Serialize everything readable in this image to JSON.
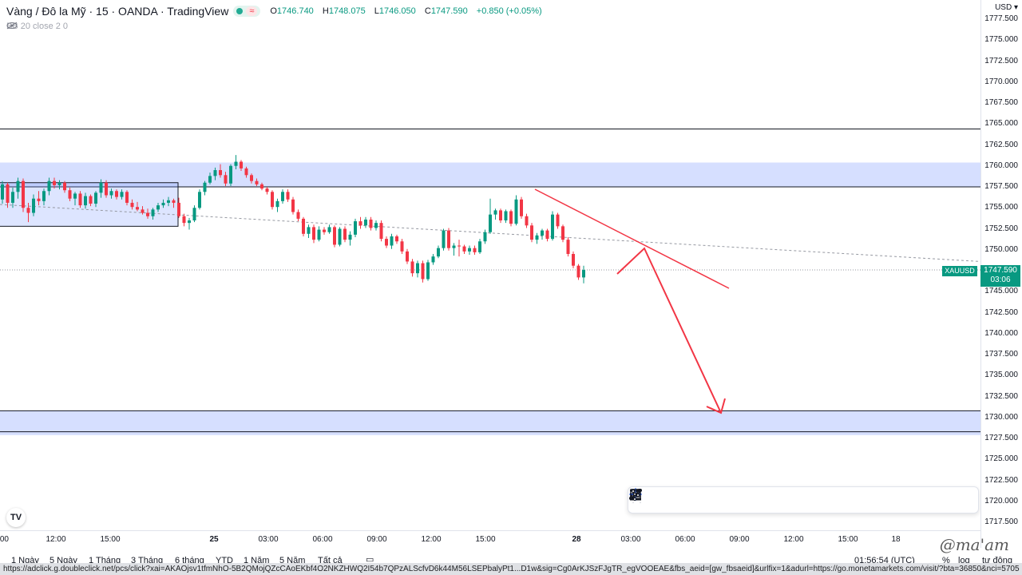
{
  "header": {
    "title": "Vàng / Đô la Mỹ · 15 · OANDA · TradingView",
    "wave_icon": "≈",
    "ohlc": {
      "o": "1746.740",
      "h": "1748.075",
      "l": "1746.050",
      "c": "1747.590",
      "chg": "+0.850 (+0.05%)"
    },
    "indicator": "BB 20 close 2 0"
  },
  "price_axis": {
    "currency": "USD",
    "ticks": [
      "1777.500",
      "1775.000",
      "1772.500",
      "1770.000",
      "1767.500",
      "1765.000",
      "1762.500",
      "1760.000",
      "1757.500",
      "1755.000",
      "1752.500",
      "1750.000",
      "1745.000",
      "1742.500",
      "1740.000",
      "1737.500",
      "1735.000",
      "1732.500",
      "1730.000",
      "1727.500",
      "1725.000",
      "1722.500",
      "1720.000",
      "1717.500"
    ],
    "symbol_tag": "XAUUSD",
    "last_price": "1747.590",
    "countdown": "03:06"
  },
  "time_axis": {
    "ticks": [
      ":00",
      "12:00",
      "15:00",
      "25",
      "03:00",
      "06:00",
      "09:00",
      "12:00",
      "15:00",
      "28",
      "03:00",
      "06:00",
      "09:00",
      "12:00",
      "15:00",
      "18"
    ]
  },
  "bottom_bar": {
    "ranges": [
      "1 Ngày",
      "5 Ngày",
      "1 Tháng",
      "3 Tháng",
      "6 tháng",
      "YTD",
      "1 Năm",
      "5 Năm",
      "Tất cả"
    ],
    "clock": "01:56:54 (UTC)",
    "percent": "%",
    "log": "log",
    "auto": "tự động"
  },
  "status_url": "https://adclick.g.doubleclick.net/pcs/click?xai=AKAOjsv1tfmNhO-5B2QMojQZcCAoEKbf4O2NKZHWQ2I54b7QPzALScfvD6k44M56LSEPbalyPt1...D1w&sig=Cg0ArKJSzFJgTR_egVOOEAE&fbs_aeid=[gw_fbsaeid]&urlfix=1&adurl=https://go.monetamarkets.com/visit/?bta=36850&nci=5705",
  "watermark": "@ma'am",
  "tv_logo": "TV",
  "drawing_tools": [
    "trend-line-icon",
    "ray-icon",
    "rectangle-icon",
    "fib-icon",
    "brush-icon",
    "horizontal-line-icon",
    "text-icon",
    "parallel-channel-icon",
    "pattern-icon",
    "crosshair-icon",
    "path-icon",
    "callout-icon",
    "settings-icon"
  ],
  "chart_data": {
    "type": "candlestick",
    "symbol": "XAUUSD",
    "ylim": [
      1716.5,
      1778.5
    ],
    "candles": [
      [
        1756.0,
        1758.2,
        1755.5,
        1757.8
      ],
      [
        1757.8,
        1758.0,
        1755.0,
        1755.6
      ],
      [
        1755.6,
        1757.4,
        1755.0,
        1756.9
      ],
      [
        1756.9,
        1758.6,
        1756.1,
        1758.2
      ],
      [
        1758.2,
        1758.5,
        1754.5,
        1755.0
      ],
      [
        1755.0,
        1755.6,
        1753.3,
        1754.4
      ],
      [
        1754.4,
        1756.6,
        1754.0,
        1756.1
      ],
      [
        1756.1,
        1757.0,
        1755.3,
        1755.8
      ],
      [
        1755.8,
        1757.3,
        1755.3,
        1757.0
      ],
      [
        1757.0,
        1758.6,
        1756.5,
        1758.2
      ],
      [
        1758.2,
        1758.6,
        1757.3,
        1757.7
      ],
      [
        1757.7,
        1758.3,
        1757.2,
        1758.0
      ],
      [
        1758.0,
        1758.2,
        1756.8,
        1757.1
      ],
      [
        1757.1,
        1757.4,
        1755.8,
        1756.1
      ],
      [
        1756.1,
        1756.9,
        1755.3,
        1756.7
      ],
      [
        1756.7,
        1757.0,
        1755.0,
        1755.3
      ],
      [
        1755.3,
        1756.8,
        1754.9,
        1756.4
      ],
      [
        1756.4,
        1756.6,
        1755.2,
        1755.5
      ],
      [
        1755.5,
        1757.0,
        1755.1,
        1756.8
      ],
      [
        1756.8,
        1758.4,
        1756.2,
        1758.0
      ],
      [
        1758.0,
        1758.3,
        1756.2,
        1756.5
      ],
      [
        1756.5,
        1757.3,
        1756.1,
        1757.0
      ],
      [
        1757.0,
        1757.2,
        1756.0,
        1756.3
      ],
      [
        1756.3,
        1757.2,
        1756.0,
        1756.9
      ],
      [
        1756.9,
        1757.1,
        1755.3,
        1755.6
      ],
      [
        1755.6,
        1756.0,
        1754.8,
        1755.1
      ],
      [
        1755.1,
        1755.7,
        1754.6,
        1754.8
      ],
      [
        1754.8,
        1755.2,
        1754.2,
        1754.4
      ],
      [
        1754.4,
        1754.9,
        1753.7,
        1754.0
      ],
      [
        1754.0,
        1755.0,
        1753.6,
        1754.8
      ],
      [
        1754.8,
        1755.6,
        1754.5,
        1755.3
      ],
      [
        1755.3,
        1756.0,
        1755.0,
        1755.6
      ],
      [
        1755.6,
        1756.3,
        1755.2,
        1755.9
      ],
      [
        1755.9,
        1756.1,
        1755.0,
        1755.6
      ],
      [
        1755.6,
        1756.2,
        1753.8,
        1754.0
      ],
      [
        1754.0,
        1754.3,
        1752.8,
        1753.2
      ],
      [
        1753.2,
        1753.8,
        1752.4,
        1753.5
      ],
      [
        1753.5,
        1755.3,
        1753.3,
        1755.0
      ],
      [
        1755.0,
        1757.2,
        1754.8,
        1756.9
      ],
      [
        1756.9,
        1758.2,
        1756.5,
        1758.0
      ],
      [
        1758.0,
        1759.2,
        1757.8,
        1758.8
      ],
      [
        1758.8,
        1759.8,
        1758.3,
        1759.5
      ],
      [
        1759.5,
        1760.2,
        1758.6,
        1758.9
      ],
      [
        1758.9,
        1759.3,
        1757.6,
        1757.9
      ],
      [
        1757.9,
        1760.2,
        1757.6,
        1760.0
      ],
      [
        1760.0,
        1761.3,
        1759.6,
        1760.5
      ],
      [
        1760.5,
        1760.7,
        1759.4,
        1759.7
      ],
      [
        1759.7,
        1759.9,
        1758.6,
        1758.9
      ],
      [
        1758.9,
        1759.1,
        1757.9,
        1758.2
      ],
      [
        1758.2,
        1758.5,
        1757.6,
        1757.8
      ],
      [
        1757.8,
        1758.0,
        1757.1,
        1757.3
      ],
      [
        1757.3,
        1757.5,
        1756.6,
        1756.9
      ],
      [
        1756.9,
        1757.1,
        1754.8,
        1755.1
      ],
      [
        1755.1,
        1756.1,
        1754.5,
        1755.8
      ],
      [
        1755.8,
        1757.2,
        1755.5,
        1756.9
      ],
      [
        1756.9,
        1757.2,
        1755.7,
        1756.0
      ],
      [
        1756.0,
        1756.3,
        1754.2,
        1754.5
      ],
      [
        1754.5,
        1754.8,
        1753.4,
        1753.7
      ],
      [
        1753.7,
        1753.9,
        1751.6,
        1751.9
      ],
      [
        1751.9,
        1753.0,
        1751.4,
        1752.7
      ],
      [
        1752.7,
        1753.0,
        1750.8,
        1751.2
      ],
      [
        1751.2,
        1752.8,
        1751.0,
        1752.4
      ],
      [
        1752.4,
        1752.7,
        1751.8,
        1752.1
      ],
      [
        1752.1,
        1753.0,
        1751.9,
        1752.7
      ],
      [
        1752.7,
        1752.9,
        1750.3,
        1750.6
      ],
      [
        1750.6,
        1752.7,
        1750.4,
        1752.5
      ],
      [
        1752.5,
        1752.8,
        1750.9,
        1751.2
      ],
      [
        1751.2,
        1752.2,
        1750.5,
        1751.8
      ],
      [
        1751.8,
        1753.7,
        1751.5,
        1753.4
      ],
      [
        1753.4,
        1753.9,
        1752.5,
        1752.9
      ],
      [
        1752.9,
        1753.9,
        1752.6,
        1753.6
      ],
      [
        1753.6,
        1753.9,
        1752.3,
        1752.6
      ],
      [
        1752.6,
        1753.5,
        1752.3,
        1753.2
      ],
      [
        1753.2,
        1753.5,
        1751.0,
        1751.3
      ],
      [
        1751.3,
        1751.6,
        1750.2,
        1750.5
      ],
      [
        1750.5,
        1751.9,
        1750.1,
        1751.6
      ],
      [
        1751.6,
        1751.8,
        1750.7,
        1751.0
      ],
      [
        1751.0,
        1751.3,
        1749.5,
        1749.8
      ],
      [
        1749.8,
        1750.1,
        1748.3,
        1748.6
      ],
      [
        1748.6,
        1748.9,
        1746.8,
        1747.2
      ],
      [
        1747.2,
        1748.7,
        1746.7,
        1748.4
      ],
      [
        1748.4,
        1748.7,
        1746.1,
        1746.5
      ],
      [
        1746.5,
        1748.8,
        1746.3,
        1748.5
      ],
      [
        1748.5,
        1749.5,
        1748.2,
        1749.2
      ],
      [
        1749.2,
        1750.5,
        1749.0,
        1750.2
      ],
      [
        1750.2,
        1752.5,
        1749.9,
        1752.3
      ],
      [
        1752.3,
        1752.6,
        1749.9,
        1750.2
      ],
      [
        1750.2,
        1750.8,
        1749.3,
        1750.5
      ],
      [
        1750.5,
        1751.2,
        1749.2,
        1750.4
      ],
      [
        1750.4,
        1750.6,
        1749.5,
        1749.8
      ],
      [
        1749.8,
        1750.5,
        1749.4,
        1750.2
      ],
      [
        1750.2,
        1750.5,
        1749.4,
        1749.7
      ],
      [
        1749.7,
        1751.3,
        1749.5,
        1751.0
      ],
      [
        1751.0,
        1752.4,
        1750.7,
        1752.1
      ],
      [
        1752.1,
        1756.1,
        1751.9,
        1754.2
      ],
      [
        1754.2,
        1754.9,
        1753.6,
        1754.7
      ],
      [
        1754.7,
        1754.9,
        1753.2,
        1753.5
      ],
      [
        1753.5,
        1754.8,
        1753.2,
        1754.6
      ],
      [
        1754.6,
        1754.8,
        1752.8,
        1753.1
      ],
      [
        1753.1,
        1756.5,
        1752.9,
        1756.0
      ],
      [
        1756.0,
        1756.3,
        1753.7,
        1754.0
      ],
      [
        1754.0,
        1754.3,
        1752.6,
        1752.9
      ],
      [
        1752.9,
        1753.2,
        1750.9,
        1751.2
      ],
      [
        1751.2,
        1752.0,
        1750.7,
        1751.7
      ],
      [
        1751.7,
        1752.5,
        1751.2,
        1752.3
      ],
      [
        1752.3,
        1752.5,
        1751.0,
        1751.3
      ],
      [
        1751.3,
        1754.6,
        1751.1,
        1754.2
      ],
      [
        1754.2,
        1754.4,
        1752.5,
        1752.8
      ],
      [
        1752.8,
        1753.0,
        1750.9,
        1751.2
      ],
      [
        1751.2,
        1751.5,
        1749.2,
        1749.5
      ],
      [
        1749.5,
        1749.8,
        1747.8,
        1748.1
      ],
      [
        1748.1,
        1748.3,
        1746.4,
        1746.7
      ],
      [
        1746.7,
        1748.1,
        1746.0,
        1747.6
      ]
    ],
    "annotations": {
      "resistance_zone": [
        1757.5,
        1760.4
      ],
      "support_zone": [
        1727.9,
        1730.8
      ],
      "support_line": 1728.3,
      "top_line": 1764.4,
      "consolidation_box": [
        1752.8,
        1758.0
      ],
      "last_price": 1747.59
    }
  }
}
